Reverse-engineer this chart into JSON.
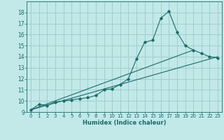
{
  "xlabel": "Humidex (Indice chaleur)",
  "ylabel": "",
  "bg_color": "#c2e8e8",
  "grid_color": "#9ecece",
  "line_color": "#1a6b6b",
  "xlim": [
    -0.5,
    23.5
  ],
  "ylim": [
    9,
    19
  ],
  "xticks": [
    0,
    1,
    2,
    3,
    4,
    5,
    6,
    7,
    8,
    9,
    10,
    11,
    12,
    13,
    14,
    15,
    16,
    17,
    18,
    19,
    20,
    21,
    22,
    23
  ],
  "yticks": [
    9,
    10,
    11,
    12,
    13,
    14,
    15,
    16,
    17,
    18
  ],
  "line1_x": [
    0,
    1,
    2,
    3,
    4,
    5,
    6,
    7,
    8,
    9,
    10,
    11,
    12,
    13,
    14,
    15,
    16,
    17,
    18,
    19,
    20,
    21,
    22,
    23
  ],
  "line1_y": [
    9.2,
    9.7,
    9.6,
    9.9,
    10.0,
    10.1,
    10.2,
    10.3,
    10.5,
    11.0,
    11.1,
    11.5,
    12.0,
    13.8,
    15.3,
    15.5,
    17.5,
    18.1,
    16.2,
    15.0,
    14.6,
    14.3,
    14.0,
    13.9
  ],
  "line2_x": [
    0,
    23
  ],
  "line2_y": [
    9.2,
    14.0
  ],
  "line3_x": [
    0,
    20
  ],
  "line3_y": [
    9.2,
    14.6
  ]
}
